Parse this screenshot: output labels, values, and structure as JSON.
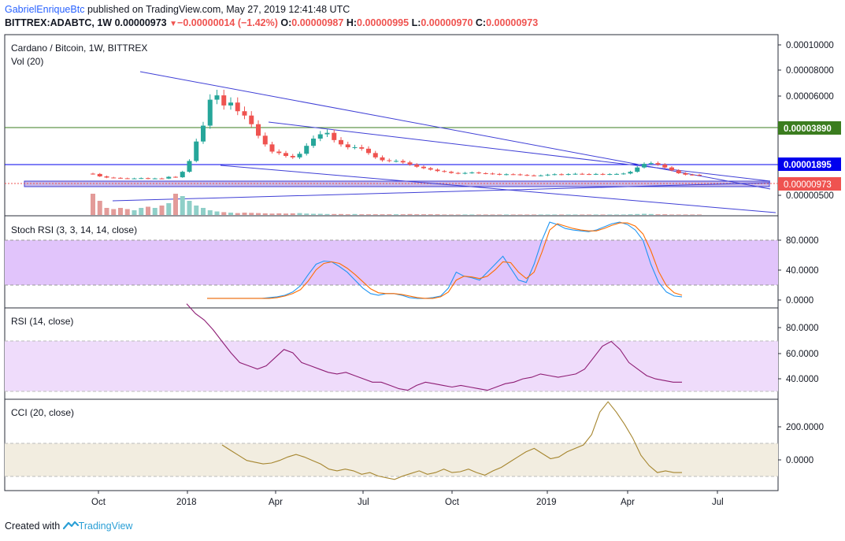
{
  "header": {
    "author": "GabrielEnriqueBtc",
    "published_text": "published on TradingView.com, May 27, 2019 12:41:48 UTC",
    "symbol": "BITTREX:ADABTC, 1W",
    "last": "0.00000973",
    "down_arrow": "▼",
    "change": "−0.00000014 (−1.42%)",
    "o_label": "O:",
    "o_value": "0.00000987",
    "h_label": "H:",
    "h_value": "0.00000995",
    "l_label": "L:",
    "l_value": "0.00000970",
    "c_label": "C:",
    "c_value": "0.00000973"
  },
  "footer": {
    "created_with": "Created with",
    "brand": "TradingView"
  },
  "colors": {
    "up": "#26a69a",
    "down": "#ef5350",
    "trendline": "#3f3fd6",
    "green_level": "#3b7d1f",
    "blue_level": "#0000ee",
    "stoch_k": "#2196f3",
    "stoch_d": "#ff6d00",
    "rsi": "#8e1d74",
    "cci": "#a6862f",
    "stoch_band": "#e1c4fb",
    "rsi_band": "#efdcfb",
    "cci_band": "#f2ede0"
  },
  "chart_data": [
    {
      "type": "candlestick",
      "title": "Cardano / Bitcoin, 1W, BITTREX",
      "subtitle": "Vol (20)",
      "x_tick_labels": [
        "Oct",
        "2018",
        "Apr",
        "Jul",
        "Oct",
        "2019",
        "Apr",
        "Jul"
      ],
      "y_tick_labels": [
        "0.00010000",
        "0.00008000",
        "0.00006000",
        "0.00000500"
      ],
      "price_labels": [
        {
          "value": 3.89e-05,
          "text": "0.00003890",
          "color": "#3b7d1f"
        },
        {
          "value": 1.895e-05,
          "text": "0.00001895",
          "color": "#0000ee"
        },
        {
          "value": 9.73e-06,
          "text": "0.00000973",
          "color": "#ef5350"
        }
      ],
      "close_series": [
        1.05e-05,
        8.8e-06,
        8e-06,
        7.8e-06,
        7.5e-06,
        7.4e-06,
        7.4e-06,
        7.6e-06,
        7.2e-06,
        7.4e-06,
        7.3e-06,
        8.5e-06,
        8.2e-06,
        1.2e-05,
        1.95e-05,
        3.3e-05,
        4.4e-05,
        6.2e-05,
        6.5e-05,
        5.8e-05,
        6e-05,
        5.4e-05,
        5.1e-05,
        4.5e-05,
        3.7e-05,
        3.1e-05,
        2.6e-05,
        2.5e-05,
        2.3e-05,
        2.2e-05,
        2.45e-05,
        3e-05,
        3.5e-05,
        3.8e-05,
        3.9e-05,
        3.4e-05,
        3.1e-05,
        2.9e-05,
        2.9e-05,
        2.8e-05,
        2.5e-05,
        2.2e-05,
        2e-05,
        1.95e-05,
        1.95e-05,
        1.85e-05,
        1.7e-05,
        1.55e-05,
        1.45e-05,
        1.35e-05,
        1.25e-05,
        1.2e-05,
        1.12e-05,
        1.08e-05,
        1.12e-05,
        1.15e-05,
        1.1e-05,
        1.08e-05,
        1.05e-05,
        1e-05,
        1.03e-05,
        1.02e-05,
        9.8e-06,
        9.5e-06,
        9.3e-06,
        9.5e-06,
        1e-05,
        1.03e-05,
        1e-05,
        1.04e-05,
        1.06e-05,
        1.04e-05,
        1.03e-05,
        1.05e-05,
        1.02e-05,
        1.04e-05,
        1.05e-05,
        1.08e-05,
        1.2e-05,
        1.5e-05,
        1.75e-05,
        1.8e-05,
        1.7e-05,
        1.5e-05,
        1.3e-05,
        1.1e-05,
        1e-05,
        9.9e-06,
        9.7e-06
      ],
      "volume_series": [
        0.9,
        0.6,
        0.3,
        0.25,
        0.3,
        0.25,
        0.2,
        0.3,
        0.35,
        0.3,
        0.4,
        0.5,
        0.9,
        0.8,
        0.6,
        0.4,
        0.3,
        0.2,
        0.15,
        0.12,
        0.1,
        0.08,
        0.1,
        0.09,
        0.08,
        0.07,
        0.06,
        0.07,
        0.06,
        0.07,
        0.08,
        0.06,
        0.05,
        0.05,
        0.04,
        0.04,
        0.04,
        0.03,
        0.04,
        0.03,
        0.03,
        0.03,
        0.03,
        0.03,
        0.03,
        0.03,
        0.04,
        0.03,
        0.03,
        0.03,
        0.03,
        0.02,
        0.02,
        0.02,
        0.02,
        0.02,
        0.02,
        0.02,
        0.02,
        0.02,
        0.02,
        0.02,
        0.02,
        0.02,
        0.02,
        0.02,
        0.02,
        0.02,
        0.02,
        0.02,
        0.02,
        0.02,
        0.02,
        0.02,
        0.02,
        0.02,
        0.02,
        0.02,
        0.03,
        0.04,
        0.05,
        0.04,
        0.03,
        0.03,
        0.02,
        0.02,
        0.02,
        0.02,
        0.02
      ]
    },
    {
      "type": "line",
      "title": "Stoch RSI (3, 3, 14, 14, close)",
      "y_tick_labels": [
        "80.0000",
        "40.0000",
        "0.0000"
      ],
      "ylim": [
        -10,
        105
      ],
      "bands": [
        20,
        80
      ],
      "series": [
        {
          "values": [
            2,
            2,
            2,
            2,
            2,
            2,
            2,
            2,
            3,
            4,
            6,
            10,
            18,
            32,
            45,
            49,
            48,
            42,
            35,
            25,
            15,
            8,
            6,
            8,
            8,
            6,
            3,
            2,
            2,
            3,
            5,
            15,
            35,
            30,
            28,
            25,
            35,
            45,
            55,
            40,
            25,
            22,
            45,
            75,
            98,
            95,
            90,
            88,
            87,
            86,
            88,
            92,
            96,
            98,
            95,
            88,
            75,
            45,
            22,
            10,
            5,
            4
          ]
        },
        {
          "values": [
            2,
            2,
            2,
            2,
            2,
            2,
            2,
            2,
            2,
            3,
            5,
            8,
            13,
            24,
            38,
            46,
            48,
            46,
            40,
            32,
            23,
            14,
            9,
            8,
            8,
            7,
            5,
            3,
            2,
            2,
            4,
            10,
            25,
            30,
            29,
            27,
            30,
            38,
            48,
            47,
            35,
            27,
            35,
            60,
            88,
            96,
            93,
            90,
            88,
            87,
            87,
            90,
            94,
            97,
            97,
            93,
            83,
            62,
            36,
            18,
            9,
            6
          ]
        }
      ]
    },
    {
      "type": "line",
      "title": "RSI (14, close)",
      "y_tick_labels": [
        "80.0000",
        "60.0000",
        "40.0000"
      ],
      "ylim": [
        30,
        85
      ],
      "bands": [
        30,
        70
      ],
      "series": [
        {
          "values": [
            88,
            82,
            78,
            72,
            65,
            58,
            52,
            50,
            48,
            50,
            55,
            60,
            58,
            52,
            50,
            48,
            46,
            45,
            46,
            44,
            42,
            40,
            40,
            38,
            36,
            35,
            38,
            40,
            39,
            38,
            37,
            38,
            37,
            36,
            35,
            37,
            39,
            40,
            42,
            43,
            45,
            44,
            43,
            44,
            45,
            48,
            55,
            62,
            65,
            60,
            52,
            48,
            44,
            42,
            41,
            40,
            40
          ]
        }
      ]
    },
    {
      "type": "line",
      "title": "CCI (20, close)",
      "y_tick_labels": [
        "200.0000",
        "0.0000"
      ],
      "ylim": [
        -200,
        320
      ],
      "bands": [
        -100,
        100
      ],
      "series": [
        {
          "values": [
            60,
            30,
            0,
            -30,
            -40,
            -50,
            -45,
            -30,
            -10,
            5,
            -10,
            -30,
            -50,
            -80,
            -90,
            -80,
            -90,
            -110,
            -100,
            -120,
            -130,
            -140,
            -120,
            -105,
            -90,
            -110,
            -100,
            -80,
            -100,
            -95,
            -80,
            -100,
            -115,
            -90,
            -70,
            -40,
            -10,
            20,
            40,
            10,
            -20,
            -10,
            20,
            40,
            60,
            120,
            250,
            310,
            250,
            180,
            100,
            0,
            -60,
            -100,
            -90,
            -100,
            -100
          ]
        }
      ]
    }
  ]
}
